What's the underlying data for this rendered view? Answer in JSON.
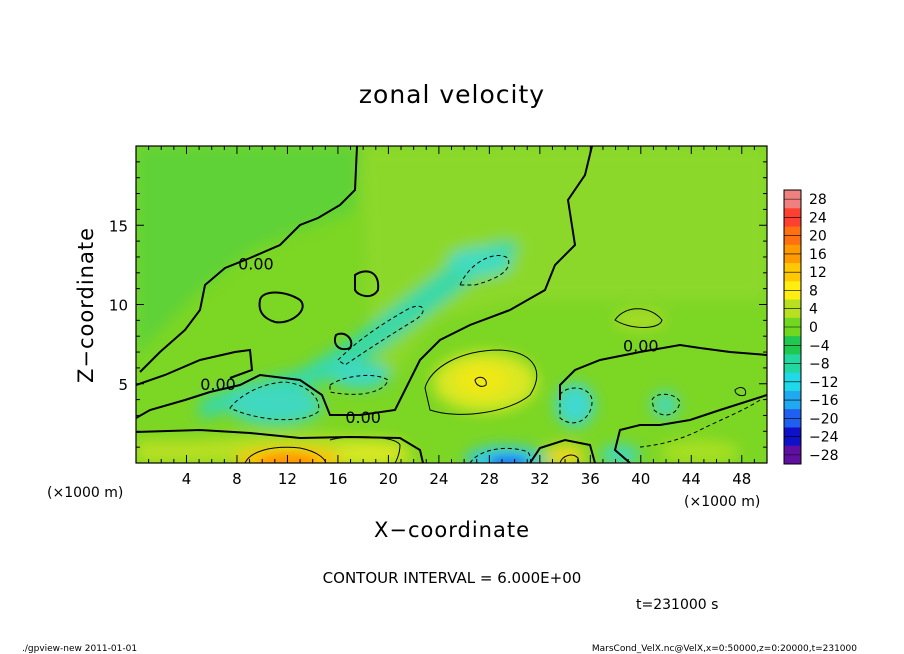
{
  "chart_data": {
    "type": "heatmap",
    "title": "zonal velocity",
    "xlabel": "X−coordinate",
    "ylabel": "Z−coordinate",
    "x_unit": "(×1000 m)",
    "x_unit_right": "(×1000 m)",
    "xlim": [
      0,
      50
    ],
    "ylim": [
      0,
      20
    ],
    "x_ticks": [
      4,
      8,
      12,
      16,
      20,
      24,
      28,
      32,
      36,
      40,
      44,
      48
    ],
    "y_ticks": [
      5,
      10,
      15
    ],
    "colorbar_levels": [
      28,
      24,
      20,
      16,
      12,
      8,
      4,
      0,
      -4,
      -8,
      -12,
      -16,
      -20,
      -24,
      -28
    ],
    "colorbar_labels": [
      "28",
      "24",
      "20",
      "16",
      "12",
      "8",
      "4",
      "0",
      "−4",
      "−8",
      "−12",
      "−16",
      "−20",
      "−24",
      "−28"
    ],
    "colorbar_colors": [
      "#f08080",
      "#ff4030",
      "#ff7010",
      "#ff9a00",
      "#ffc800",
      "#ffee10",
      "#b8e020",
      "#70d820",
      "#20c850",
      "#20d8a0",
      "#20d8e8",
      "#20a8f0",
      "#2060f0",
      "#1010c8",
      "#6010a0"
    ],
    "contour_labels": [
      {
        "text": "0.00",
        "x": 9.5,
        "z": 12.6
      },
      {
        "text": "0.00",
        "x": 6.5,
        "z": 5.0
      },
      {
        "text": "0.00",
        "x": 18.0,
        "z": 2.9
      },
      {
        "text": "0.00",
        "x": 40.0,
        "z": 7.4
      }
    ],
    "contour_interval": "CONTOUR INTERVAL = 6.000E+00",
    "time": "t=231000  s"
  },
  "footer": {
    "left": "./gpview-new   2011-01-01",
    "right": "MarsCond_VelX.nc@VelX,x=0:50000,z=0:20000,t=231000"
  }
}
